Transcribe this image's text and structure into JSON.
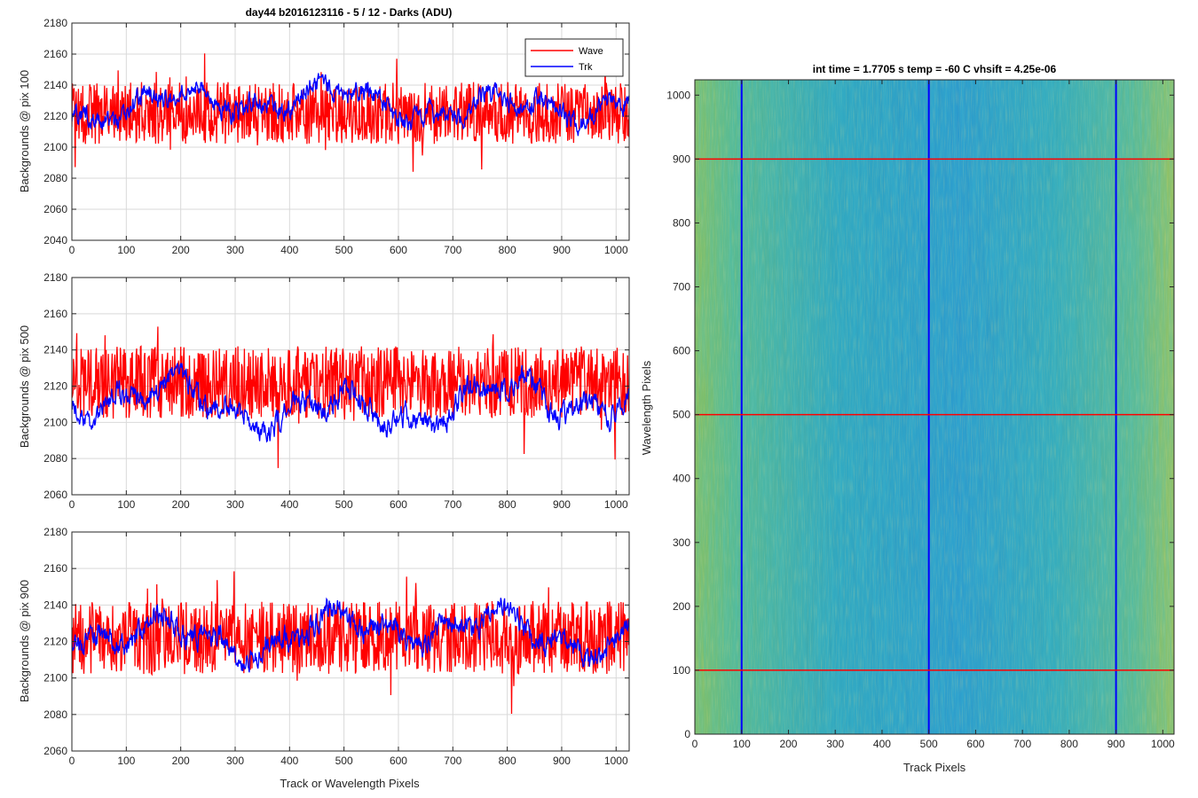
{
  "chart_data": [
    {
      "type": "line",
      "panel": "top-left",
      "title": "day44 b2016123116 - 5 / 12 - Darks (ADU)",
      "xlabel": "",
      "ylabel": "Backgrounds @ pix 100",
      "xlim": [
        0,
        1024
      ],
      "ylim": [
        2040,
        2180
      ],
      "xticks": [
        0,
        100,
        200,
        300,
        400,
        500,
        600,
        700,
        800,
        900,
        1000
      ],
      "yticks": [
        2040,
        2060,
        2080,
        2100,
        2120,
        2140,
        2160,
        2180
      ],
      "grid": true,
      "legend": {
        "placement": "top-right",
        "entries": [
          "Wave",
          "Trk"
        ]
      },
      "series": [
        {
          "name": "Wave",
          "color": "#ff0000",
          "noise": "high",
          "mean": 2122,
          "amplitude": 20
        },
        {
          "name": "Trk",
          "color": "#0000ff",
          "noise": "smooth",
          "mean": 2128,
          "amplitude": 14
        }
      ]
    },
    {
      "type": "line",
      "panel": "middle-left",
      "xlabel": "",
      "ylabel": "Backgrounds @ pix 500",
      "xlim": [
        0,
        1024
      ],
      "ylim": [
        2060,
        2180
      ],
      "xticks": [
        0,
        100,
        200,
        300,
        400,
        500,
        600,
        700,
        800,
        900,
        1000
      ],
      "yticks": [
        2060,
        2080,
        2100,
        2120,
        2140,
        2160,
        2180
      ],
      "grid": true,
      "series": [
        {
          "name": "Wave",
          "color": "#ff0000",
          "noise": "high",
          "mean": 2122,
          "amplitude": 20
        },
        {
          "name": "Trk",
          "color": "#0000ff",
          "noise": "smooth",
          "mean": 2110,
          "amplitude": 16
        }
      ]
    },
    {
      "type": "line",
      "panel": "bottom-left",
      "xlabel": "Track or Wavelength Pixels",
      "ylabel": "Backgrounds @ pix 900",
      "xlim": [
        0,
        1024
      ],
      "ylim": [
        2060,
        2180
      ],
      "xticks": [
        0,
        100,
        200,
        300,
        400,
        500,
        600,
        700,
        800,
        900,
        1000
      ],
      "yticks": [
        2060,
        2080,
        2100,
        2120,
        2140,
        2160,
        2180
      ],
      "grid": true,
      "series": [
        {
          "name": "Wave",
          "color": "#ff0000",
          "noise": "high",
          "mean": 2122,
          "amplitude": 20
        },
        {
          "name": "Trk",
          "color": "#0000ff",
          "noise": "smooth",
          "mean": 2125,
          "amplitude": 14
        }
      ]
    },
    {
      "type": "heatmap",
      "panel": "right",
      "title": "int time = 1.7705 s    temp = -60 C    vhsift = 4.25e-06",
      "xlabel": "Track Pixels",
      "ylabel": "Wavelength Pixels",
      "xlim": [
        0,
        1024
      ],
      "ylim": [
        0,
        1024
      ],
      "xticks": [
        0,
        100,
        200,
        300,
        400,
        500,
        600,
        700,
        800,
        900,
        1000
      ],
      "yticks": [
        0,
        100,
        200,
        300,
        400,
        500,
        600,
        700,
        800,
        900,
        1000
      ],
      "colormap": [
        "#2a8fd0",
        "#2fb0b8",
        "#6fbf6a",
        "#c8b84a"
      ],
      "vertical_lines": {
        "x": [
          100,
          500,
          900
        ],
        "color": "#0000ff"
      },
      "horizontal_lines": {
        "y": [
          100,
          500,
          900
        ],
        "color": "#ff0000"
      }
    }
  ]
}
